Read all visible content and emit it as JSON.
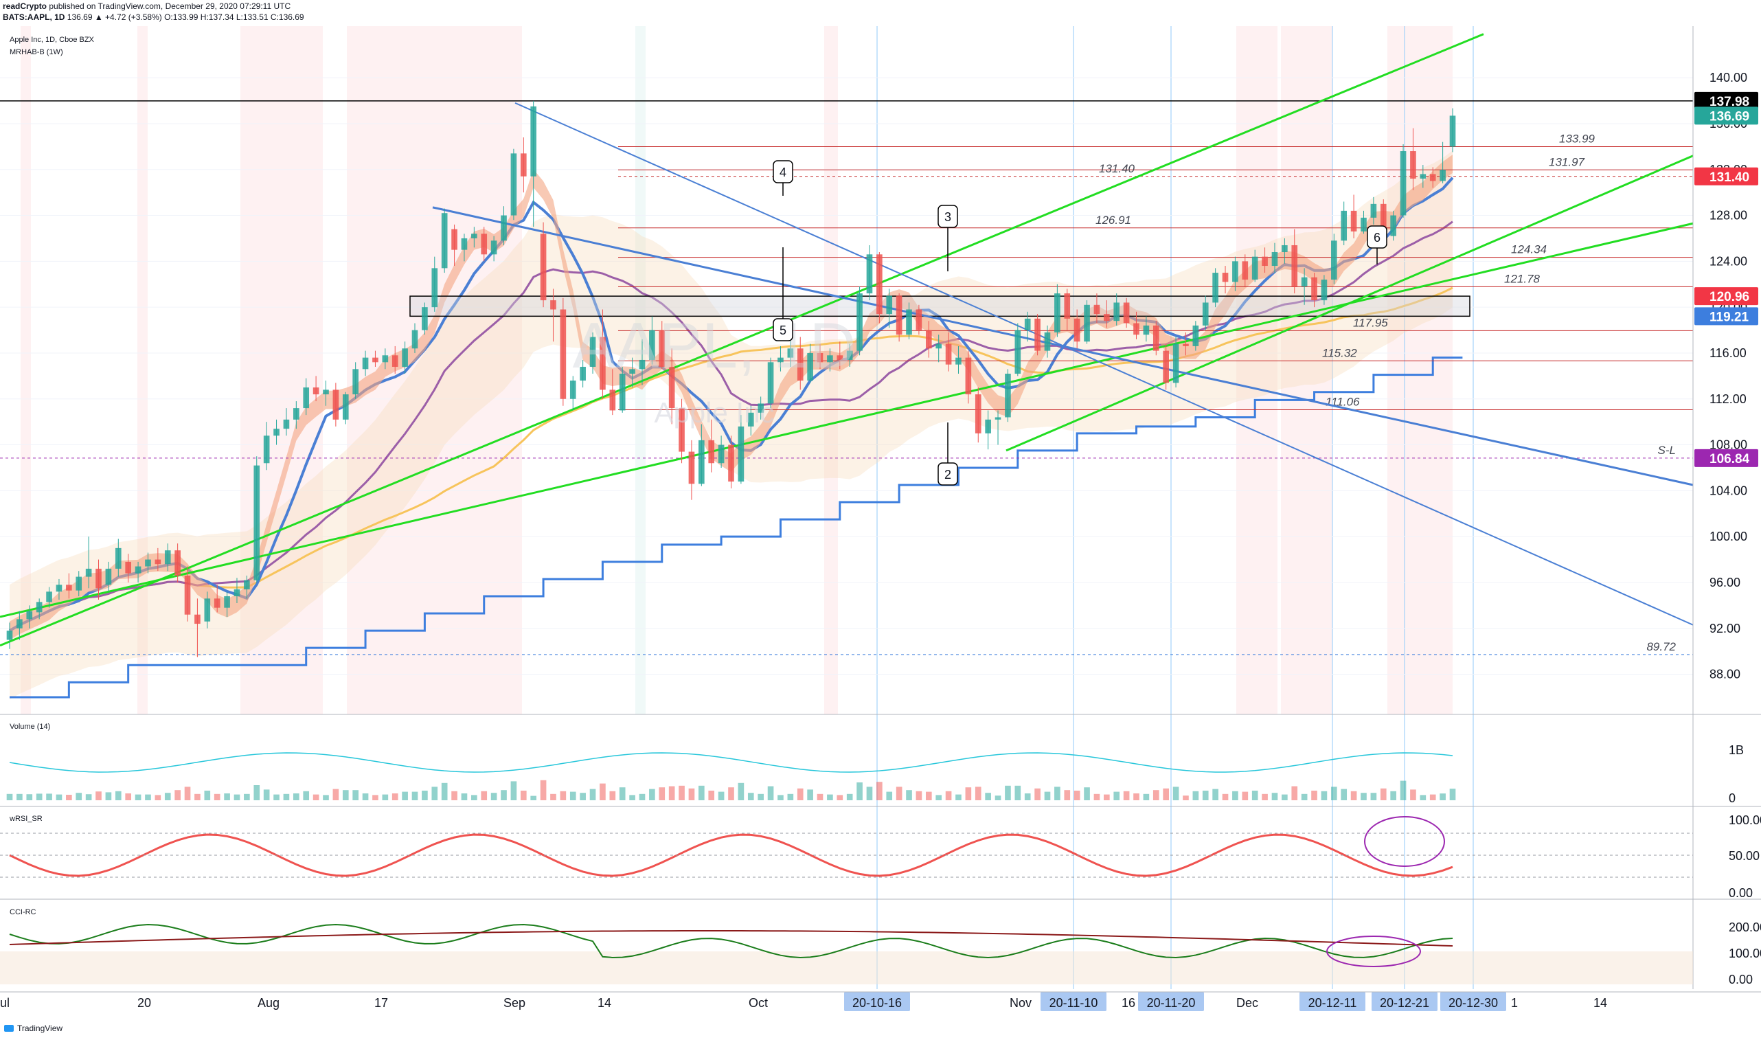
{
  "header": {
    "line1_author": "readCrypto",
    "line1_text": "published on TradingView.com, December 29, 2020 07:29:11 UTC",
    "line2_symbol": "BATS:AAPL, 1D",
    "line2_quote": "136.69 ▲ +4.72 (+3.58%) O:133.99 H:137.34 L:133.51 C:136.69"
  },
  "legend": {
    "title": "Apple Inc, 1D, Cboe BZX",
    "indicator": "MRHAB-B (1W)",
    "volume": "Volume (14)",
    "wrsi": "wRSI_SR",
    "cci": "CCI-RC"
  },
  "watermark": {
    "ticker": "AAPL, 1D",
    "name": "Apple Inc"
  },
  "brand": "TradingView",
  "colors": {
    "up": "#26a69a",
    "down": "#ef5350",
    "green_line": "#22dd22",
    "blue_line": "#4a7fd4",
    "orange_ma": "#f7c45c",
    "purple_ma": "#9c5fa8",
    "red_label": "#f23645",
    "blue_label": "#3d7ede",
    "purple_label": "#9c27b0",
    "black_label": "#000000",
    "teal_label": "#26a69a"
  },
  "chart_data": {
    "type": "candlestick",
    "title": "Apple Inc, 1D, Cboe BZX",
    "ylim": [
      84.5,
      144.5
    ],
    "y_ticks": [
      "140.00",
      "136.00",
      "132.00",
      "128.00",
      "124.00",
      "120.00",
      "116.00",
      "112.00",
      "108.00",
      "104.00",
      "100.00",
      "96.00",
      "92.00",
      "88.00"
    ],
    "x_ticks": [
      "ul",
      "20",
      "Aug",
      "17",
      "Sep",
      "14",
      "Oct",
      "Nov",
      "16",
      "Dec",
      "1",
      "14"
    ],
    "x_highlight_labels": [
      "20-10-16",
      "20-11-10",
      "20-11-20",
      "20-12-11",
      "20-12-21",
      "20-12-30"
    ],
    "candles": [
      {
        "o": 91.0,
        "h": 92.5,
        "l": 90.2,
        "c": 91.8
      },
      {
        "o": 92.0,
        "h": 93.5,
        "l": 91.0,
        "c": 92.8
      },
      {
        "o": 92.8,
        "h": 94.0,
        "l": 92.0,
        "c": 93.5
      },
      {
        "o": 93.4,
        "h": 94.6,
        "l": 92.8,
        "c": 94.3
      },
      {
        "o": 94.3,
        "h": 95.6,
        "l": 93.8,
        "c": 95.2
      },
      {
        "o": 95.2,
        "h": 96.3,
        "l": 94.5,
        "c": 95.8
      },
      {
        "o": 95.8,
        "h": 96.8,
        "l": 94.6,
        "c": 95.3
      },
      {
        "o": 95.3,
        "h": 97.0,
        "l": 94.8,
        "c": 96.5
      },
      {
        "o": 96.5,
        "h": 100.0,
        "l": 95.5,
        "c": 97.2
      },
      {
        "o": 97.2,
        "h": 98.0,
        "l": 94.5,
        "c": 95.5
      },
      {
        "o": 95.8,
        "h": 97.8,
        "l": 95.2,
        "c": 97.2
      },
      {
        "o": 97.2,
        "h": 99.8,
        "l": 96.5,
        "c": 99.0
      },
      {
        "o": 97.8,
        "h": 98.5,
        "l": 96.0,
        "c": 96.8
      },
      {
        "o": 96.8,
        "h": 97.8,
        "l": 96.0,
        "c": 97.4
      },
      {
        "o": 97.4,
        "h": 98.6,
        "l": 96.8,
        "c": 98.0
      },
      {
        "o": 98.0,
        "h": 99.0,
        "l": 97.0,
        "c": 97.6
      },
      {
        "o": 97.6,
        "h": 99.4,
        "l": 97.0,
        "c": 98.8
      },
      {
        "o": 98.8,
        "h": 99.4,
        "l": 96.0,
        "c": 96.6
      },
      {
        "o": 96.6,
        "h": 97.4,
        "l": 92.6,
        "c": 93.2
      },
      {
        "o": 93.2,
        "h": 94.6,
        "l": 89.5,
        "c": 92.4
      },
      {
        "o": 92.6,
        "h": 95.2,
        "l": 92.0,
        "c": 94.6
      },
      {
        "o": 94.6,
        "h": 95.8,
        "l": 93.4,
        "c": 93.8
      },
      {
        "o": 93.8,
        "h": 95.2,
        "l": 93.0,
        "c": 94.8
      },
      {
        "o": 94.8,
        "h": 96.4,
        "l": 94.2,
        "c": 95.4
      },
      {
        "o": 95.4,
        "h": 96.6,
        "l": 94.6,
        "c": 96.2
      },
      {
        "o": 96.2,
        "h": 107.0,
        "l": 96.0,
        "c": 106.2
      },
      {
        "o": 106.4,
        "h": 110.0,
        "l": 105.8,
        "c": 108.8
      },
      {
        "o": 108.8,
        "h": 110.2,
        "l": 108.0,
        "c": 109.4
      },
      {
        "o": 109.4,
        "h": 111.2,
        "l": 108.8,
        "c": 110.2
      },
      {
        "o": 110.2,
        "h": 111.8,
        "l": 109.4,
        "c": 111.2
      },
      {
        "o": 111.2,
        "h": 113.8,
        "l": 110.6,
        "c": 113.0
      },
      {
        "o": 113.0,
        "h": 114.0,
        "l": 111.8,
        "c": 112.4
      },
      {
        "o": 112.4,
        "h": 113.6,
        "l": 111.4,
        "c": 112.8
      },
      {
        "o": 112.8,
        "h": 113.4,
        "l": 109.6,
        "c": 110.2
      },
      {
        "o": 110.2,
        "h": 112.6,
        "l": 109.8,
        "c": 112.4
      },
      {
        "o": 112.4,
        "h": 115.2,
        "l": 112.0,
        "c": 114.6
      },
      {
        "o": 114.6,
        "h": 116.2,
        "l": 114.0,
        "c": 115.6
      },
      {
        "o": 115.6,
        "h": 116.2,
        "l": 114.8,
        "c": 115.2
      },
      {
        "o": 115.2,
        "h": 116.4,
        "l": 114.6,
        "c": 115.8
      },
      {
        "o": 115.8,
        "h": 116.6,
        "l": 114.2,
        "c": 114.8
      },
      {
        "o": 114.8,
        "h": 117.0,
        "l": 114.2,
        "c": 116.4
      },
      {
        "o": 116.4,
        "h": 118.6,
        "l": 116.0,
        "c": 118.0
      },
      {
        "o": 118.0,
        "h": 120.4,
        "l": 117.6,
        "c": 120.0
      },
      {
        "o": 120.0,
        "h": 124.4,
        "l": 119.6,
        "c": 123.4
      },
      {
        "o": 123.4,
        "h": 128.6,
        "l": 123.0,
        "c": 128.2
      },
      {
        "o": 126.8,
        "h": 127.2,
        "l": 123.6,
        "c": 125.0
      },
      {
        "o": 125.0,
        "h": 126.4,
        "l": 124.0,
        "c": 126.0
      },
      {
        "o": 126.0,
        "h": 127.0,
        "l": 125.2,
        "c": 126.4
      },
      {
        "o": 126.4,
        "h": 127.0,
        "l": 124.0,
        "c": 124.6
      },
      {
        "o": 124.6,
        "h": 126.2,
        "l": 124.0,
        "c": 125.8
      },
      {
        "o": 125.8,
        "h": 128.8,
        "l": 125.4,
        "c": 128.0
      },
      {
        "o": 128.0,
        "h": 133.8,
        "l": 127.6,
        "c": 133.4
      },
      {
        "o": 133.4,
        "h": 134.8,
        "l": 130.0,
        "c": 131.4
      },
      {
        "o": 131.4,
        "h": 137.98,
        "l": 127.0,
        "c": 137.5
      },
      {
        "o": 126.4,
        "h": 127.4,
        "l": 120.0,
        "c": 120.6
      },
      {
        "o": 120.6,
        "h": 121.6,
        "l": 117.0,
        "c": 119.8
      },
      {
        "o": 119.8,
        "h": 120.8,
        "l": 111.4,
        "c": 112.0
      },
      {
        "o": 112.0,
        "h": 114.0,
        "l": 111.0,
        "c": 113.6
      },
      {
        "o": 113.6,
        "h": 115.4,
        "l": 113.0,
        "c": 114.8
      },
      {
        "o": 114.8,
        "h": 117.8,
        "l": 114.2,
        "c": 117.4
      },
      {
        "o": 117.4,
        "h": 119.8,
        "l": 112.0,
        "c": 112.8
      },
      {
        "o": 112.8,
        "h": 114.6,
        "l": 110.6,
        "c": 111.0
      },
      {
        "o": 111.0,
        "h": 114.8,
        "l": 110.8,
        "c": 114.2
      },
      {
        "o": 114.2,
        "h": 115.6,
        "l": 113.0,
        "c": 114.6
      },
      {
        "o": 114.6,
        "h": 117.2,
        "l": 113.2,
        "c": 115.4
      },
      {
        "o": 115.4,
        "h": 119.2,
        "l": 115.0,
        "c": 118.0
      },
      {
        "o": 118.0,
        "h": 118.8,
        "l": 114.6,
        "c": 114.8
      },
      {
        "o": 114.8,
        "h": 116.4,
        "l": 109.8,
        "c": 111.2
      },
      {
        "o": 111.2,
        "h": 112.0,
        "l": 106.4,
        "c": 107.4
      },
      {
        "o": 107.4,
        "h": 108.4,
        "l": 103.2,
        "c": 104.6
      },
      {
        "o": 104.6,
        "h": 109.8,
        "l": 104.4,
        "c": 108.4
      },
      {
        "o": 108.4,
        "h": 110.2,
        "l": 105.6,
        "c": 106.4
      },
      {
        "o": 106.4,
        "h": 108.8,
        "l": 106.0,
        "c": 108.0
      },
      {
        "o": 108.0,
        "h": 108.8,
        "l": 104.2,
        "c": 104.8
      },
      {
        "o": 104.8,
        "h": 110.6,
        "l": 104.6,
        "c": 109.6
      },
      {
        "o": 109.6,
        "h": 111.4,
        "l": 108.8,
        "c": 110.8
      },
      {
        "o": 110.8,
        "h": 112.2,
        "l": 110.2,
        "c": 111.6
      },
      {
        "o": 111.6,
        "h": 115.6,
        "l": 111.2,
        "c": 115.2
      },
      {
        "o": 115.2,
        "h": 116.6,
        "l": 114.4,
        "c": 115.6
      },
      {
        "o": 115.6,
        "h": 117.4,
        "l": 114.8,
        "c": 116.4
      },
      {
        "o": 116.4,
        "h": 117.4,
        "l": 112.8,
        "c": 113.6
      },
      {
        "o": 113.6,
        "h": 116.8,
        "l": 113.4,
        "c": 116.0
      },
      {
        "o": 116.0,
        "h": 116.8,
        "l": 114.6,
        "c": 115.2
      },
      {
        "o": 115.2,
        "h": 116.4,
        "l": 114.4,
        "c": 115.8
      },
      {
        "o": 115.8,
        "h": 117.0,
        "l": 114.6,
        "c": 115.4
      },
      {
        "o": 115.4,
        "h": 116.8,
        "l": 114.8,
        "c": 116.2
      },
      {
        "o": 116.2,
        "h": 121.8,
        "l": 115.8,
        "c": 121.2
      },
      {
        "o": 121.2,
        "h": 125.4,
        "l": 120.6,
        "c": 124.6
      },
      {
        "o": 124.6,
        "h": 124.8,
        "l": 118.6,
        "c": 119.4
      },
      {
        "o": 119.4,
        "h": 121.6,
        "l": 118.2,
        "c": 121.0
      },
      {
        "o": 121.0,
        "h": 121.2,
        "l": 117.0,
        "c": 117.6
      },
      {
        "o": 117.6,
        "h": 120.4,
        "l": 117.2,
        "c": 119.8
      },
      {
        "o": 119.8,
        "h": 120.2,
        "l": 117.6,
        "c": 118.0
      },
      {
        "o": 118.0,
        "h": 118.8,
        "l": 115.6,
        "c": 116.4
      },
      {
        "o": 116.4,
        "h": 117.6,
        "l": 115.2,
        "c": 116.8
      },
      {
        "o": 116.8,
        "h": 117.8,
        "l": 114.4,
        "c": 115.0
      },
      {
        "o": 115.0,
        "h": 116.6,
        "l": 114.2,
        "c": 115.6
      },
      {
        "o": 115.6,
        "h": 116.2,
        "l": 111.6,
        "c": 112.4
      },
      {
        "o": 112.4,
        "h": 113.0,
        "l": 108.2,
        "c": 109.0
      },
      {
        "o": 109.0,
        "h": 111.0,
        "l": 107.6,
        "c": 110.2
      },
      {
        "o": 110.2,
        "h": 111.0,
        "l": 108.0,
        "c": 110.4
      },
      {
        "o": 110.4,
        "h": 114.6,
        "l": 110.0,
        "c": 114.2
      },
      {
        "o": 114.2,
        "h": 118.6,
        "l": 114.0,
        "c": 118.0
      },
      {
        "o": 118.0,
        "h": 119.6,
        "l": 117.0,
        "c": 119.0
      },
      {
        "o": 119.0,
        "h": 119.4,
        "l": 115.8,
        "c": 116.2
      },
      {
        "o": 116.2,
        "h": 118.4,
        "l": 115.6,
        "c": 117.8
      },
      {
        "o": 117.8,
        "h": 122.0,
        "l": 117.4,
        "c": 121.2
      },
      {
        "o": 121.2,
        "h": 121.6,
        "l": 118.0,
        "c": 119.0
      },
      {
        "o": 119.0,
        "h": 119.8,
        "l": 116.4,
        "c": 117.0
      },
      {
        "o": 117.0,
        "h": 120.6,
        "l": 116.8,
        "c": 120.2
      },
      {
        "o": 120.2,
        "h": 121.2,
        "l": 118.6,
        "c": 119.4
      },
      {
        "o": 119.4,
        "h": 120.6,
        "l": 118.2,
        "c": 118.8
      },
      {
        "o": 118.8,
        "h": 121.2,
        "l": 118.4,
        "c": 120.4
      },
      {
        "o": 120.4,
        "h": 120.8,
        "l": 118.2,
        "c": 118.6
      },
      {
        "o": 118.6,
        "h": 119.6,
        "l": 117.2,
        "c": 117.6
      },
      {
        "o": 117.6,
        "h": 119.2,
        "l": 117.0,
        "c": 118.4
      },
      {
        "o": 118.4,
        "h": 118.8,
        "l": 115.8,
        "c": 116.2
      },
      {
        "o": 116.2,
        "h": 116.8,
        "l": 112.8,
        "c": 113.4
      },
      {
        "o": 113.4,
        "h": 117.4,
        "l": 113.0,
        "c": 116.8
      },
      {
        "o": 116.8,
        "h": 117.8,
        "l": 115.8,
        "c": 116.6
      },
      {
        "o": 116.6,
        "h": 118.8,
        "l": 116.2,
        "c": 118.4
      },
      {
        "o": 118.4,
        "h": 121.0,
        "l": 118.0,
        "c": 120.4
      },
      {
        "o": 120.4,
        "h": 123.4,
        "l": 120.0,
        "c": 123.0
      },
      {
        "o": 123.0,
        "h": 123.6,
        "l": 121.2,
        "c": 122.2
      },
      {
        "o": 122.2,
        "h": 124.4,
        "l": 121.4,
        "c": 124.0
      },
      {
        "o": 124.0,
        "h": 124.6,
        "l": 121.8,
        "c": 122.4
      },
      {
        "o": 122.4,
        "h": 125.0,
        "l": 122.2,
        "c": 124.4
      },
      {
        "o": 124.4,
        "h": 125.2,
        "l": 123.0,
        "c": 123.6
      },
      {
        "o": 123.6,
        "h": 125.6,
        "l": 123.0,
        "c": 124.8
      },
      {
        "o": 124.8,
        "h": 126.0,
        "l": 123.8,
        "c": 125.4
      },
      {
        "o": 125.4,
        "h": 126.8,
        "l": 121.2,
        "c": 121.8
      },
      {
        "o": 121.8,
        "h": 123.4,
        "l": 120.2,
        "c": 122.6
      },
      {
        "o": 122.6,
        "h": 123.0,
        "l": 120.0,
        "c": 120.6
      },
      {
        "o": 120.6,
        "h": 122.8,
        "l": 120.2,
        "c": 122.4
      },
      {
        "o": 122.4,
        "h": 126.4,
        "l": 122.0,
        "c": 125.8
      },
      {
        "o": 125.8,
        "h": 129.2,
        "l": 125.4,
        "c": 128.4
      },
      {
        "o": 128.4,
        "h": 129.8,
        "l": 126.0,
        "c": 126.6
      },
      {
        "o": 126.6,
        "h": 128.4,
        "l": 126.4,
        "c": 127.8
      },
      {
        "o": 127.8,
        "h": 129.6,
        "l": 127.2,
        "c": 129.0
      },
      {
        "o": 129.0,
        "h": 129.4,
        "l": 125.6,
        "c": 126.2
      },
      {
        "o": 126.2,
        "h": 128.4,
        "l": 125.8,
        "c": 128.0
      },
      {
        "o": 128.0,
        "h": 134.2,
        "l": 127.8,
        "c": 133.6
      },
      {
        "o": 133.6,
        "h": 135.6,
        "l": 130.2,
        "c": 131.2
      },
      {
        "o": 131.2,
        "h": 132.4,
        "l": 130.4,
        "c": 131.6
      },
      {
        "o": 131.6,
        "h": 132.2,
        "l": 130.4,
        "c": 131.0
      },
      {
        "o": 131.0,
        "h": 134.4,
        "l": 130.8,
        "c": 131.97
      },
      {
        "o": 133.99,
        "h": 137.34,
        "l": 133.51,
        "c": 136.69
      }
    ],
    "levels": [
      {
        "label": "133.99",
        "value": 133.99
      },
      {
        "label": "131.97",
        "value": 131.97
      },
      {
        "label": "131.40",
        "value": 131.4
      },
      {
        "label": "126.91",
        "value": 126.91
      },
      {
        "label": "124.34",
        "value": 124.34
      },
      {
        "label": "121.78",
        "value": 121.78
      },
      {
        "label": "117.95",
        "value": 117.95
      },
      {
        "label": "115.32",
        "value": 115.32
      },
      {
        "label": "111.06",
        "value": 111.06
      },
      {
        "label": "S-L",
        "value": 106.84
      },
      {
        "label": "89.72",
        "value": 89.72
      }
    ],
    "price_labels": [
      {
        "text": "137.98",
        "value": 137.98,
        "color": "#000000"
      },
      {
        "text": "136.69",
        "value": 136.69,
        "color": "#26a69a"
      },
      {
        "text": "131.40",
        "value": 131.4,
        "color": "#f23645"
      },
      {
        "text": "120.96",
        "value": 120.96,
        "color": "#f23645"
      },
      {
        "text": "119.21",
        "value": 119.21,
        "color": "#3d7ede"
      },
      {
        "text": "106.84",
        "value": 106.84,
        "color": "#9c27b0"
      }
    ],
    "callouts": [
      "4",
      "3",
      "5",
      "2",
      "6"
    ],
    "volume_axis": [
      "1B",
      "0"
    ],
    "wrsi_axis": [
      "100.00",
      "50.00",
      "0.00"
    ],
    "cci_axis": [
      "200.00",
      "100.00",
      "0.00"
    ]
  }
}
